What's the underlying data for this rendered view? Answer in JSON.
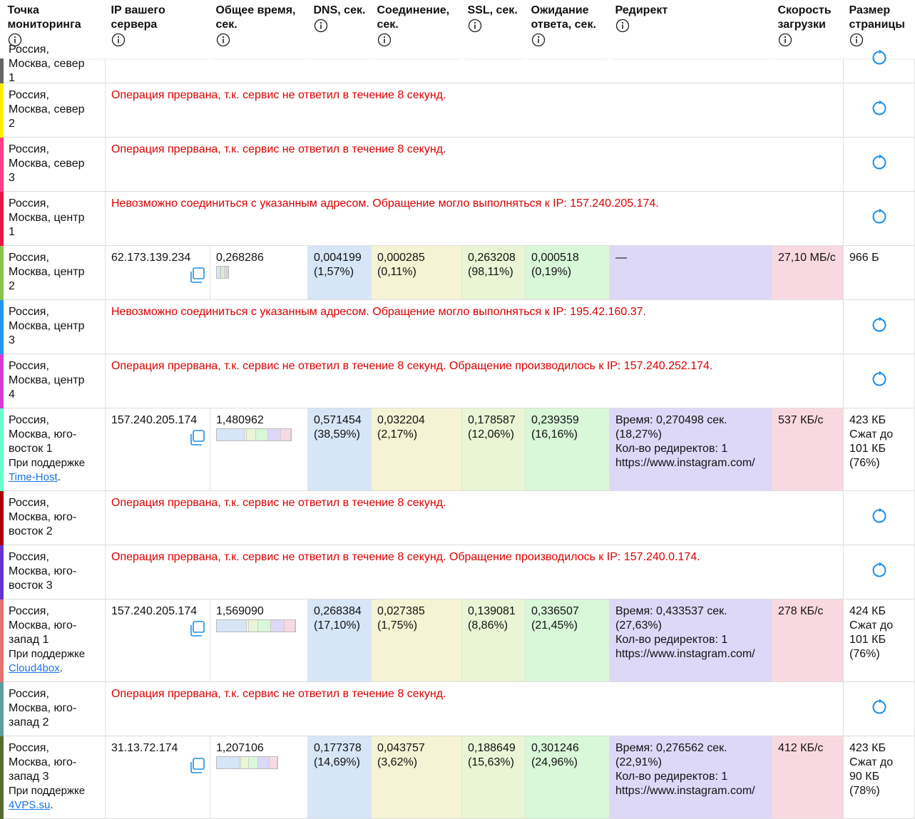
{
  "header": [
    "Точка мониторинга",
    "IP вашего сервера",
    "Общее время, сек.",
    "DNS, сек.",
    "Соединение, сек.",
    "SSL, сек.",
    "Ожидание ответа, сек.",
    "Редирект",
    "Скорость загрузки",
    "Размер страницы"
  ],
  "rows": [
    {
      "location": "Россия, Москва, север 1",
      "color": "#666666"
    },
    {
      "location": "Россия, Москва, север 2",
      "color": "#ffee00",
      "error": "Операция прервана, т.к. сервис не ответил в течение 8 секунд."
    },
    {
      "location": "Россия, Москва, север 3",
      "color": "#ff3d8b",
      "error": "Операция прервана, т.к. сервис не ответил в течение 8 секунд."
    },
    {
      "location": "Россия, Москва, центр 1",
      "color": "#e8174a",
      "error": "Невозможно соединиться с указанным адресом. Обращение могло выполняться к IP: 157.240.205.174."
    },
    {
      "location": "Россия, Москва, центр 2",
      "color": "#8bc34a",
      "ip": "62.173.139.234",
      "total": "0,268286",
      "dns": [
        "0,004199",
        "(1,57%)"
      ],
      "connect": [
        "0,000285",
        "(0,11%)"
      ],
      "ssl": [
        "0,263208",
        "(98,11%)"
      ],
      "wait": [
        "0,000518",
        "(0,19%)"
      ],
      "redirect": [
        "—"
      ],
      "speed": "27,10 МБ/с",
      "size": [
        "966 Б"
      ]
    },
    {
      "location": "Россия, Москва, центр 3",
      "color": "#2196f3",
      "error": "Невозможно соединиться с указанным адресом. Обращение могло выполняться к IP: 195.42.160.37."
    },
    {
      "location": "Россия, Москва, центр 4",
      "color": "#d63ad6",
      "error": "Операция прервана, т.к. сервис не ответил в течение 8 секунд. Обращение производилось к IP: 157.240.252.174."
    },
    {
      "location": "Россия, Москва, юго-восток 1",
      "color": "#66ffcc",
      "sponsor": [
        "При поддержке",
        "Time-Host",
        "."
      ],
      "ip": "157.240.205.174",
      "total": "1,480962",
      "dns": [
        "0,571454",
        "(38,59%)"
      ],
      "connect": [
        "0,032204",
        "(2,17%)"
      ],
      "ssl": [
        "0,178587",
        "(12,06%)"
      ],
      "wait": [
        "0,239359",
        "(16,16%)"
      ],
      "redirect": [
        "Время: 0,270498 сек. (18,27%)",
        "Кол-во редиректов: 1",
        "https://www.instagram.com/"
      ],
      "speed": "537 КБ/с",
      "size": [
        "423 КБ",
        "Сжат до 101 КБ",
        "(76%)"
      ]
    },
    {
      "location": "Россия, Москва, юго-восток 2",
      "color": "#aa0000",
      "error": "Операция прервана, т.к. сервис не ответил в течение 8 секунд."
    },
    {
      "location": "Россия, Москва, юго-восток 3",
      "color": "#6633cc",
      "error": "Операция прервана, т.к. сервис не ответил в течение 8 секунд. Обращение производилось к IP: 157.240.0.174."
    },
    {
      "location": "Россия, Москва, юго-запад 1",
      "color": "#e57373",
      "sponsor": [
        "При поддержке",
        "Cloud4box",
        "."
      ],
      "ip": "157.240.205.174",
      "total": "1,569090",
      "dns": [
        "0,268384",
        "(17,10%)"
      ],
      "connect": [
        "0,027385",
        "(1,75%)"
      ],
      "ssl": [
        "0,139081",
        "(8,86%)"
      ],
      "wait": [
        "0,336507",
        "(21,45%)"
      ],
      "redirect": [
        "Время: 0,433537 сек. (27,63%)",
        "Кол-во редиректов: 1",
        "https://www.instagram.com/"
      ],
      "speed": "278 КБ/с",
      "size": [
        "424 КБ",
        "Сжат до 101 КБ",
        "(76%)"
      ]
    },
    {
      "location": "Россия, Москва, юго-запад 2",
      "color": "#5f9ea0",
      "error": "Операция прервана, т.к. сервис не ответил в течение 8 секунд."
    },
    {
      "location": "Россия, Москва, юго-запад 3",
      "color": "#556b2f",
      "sponsor": [
        "При поддержке",
        "4VPS.su",
        "."
      ],
      "ip": "31.13.72.174",
      "total": "1,207106",
      "dns": [
        "0,177378",
        "(14,69%)"
      ],
      "connect": [
        "0,043757",
        "(3,62%)"
      ],
      "ssl": [
        "0,188649",
        "(15,63%)"
      ],
      "wait": [
        "0,301246",
        "(24,96%)"
      ],
      "redirect": [
        "Время: 0,276562 сек. (22,91%)",
        "Кол-во редиректов: 1",
        "https://www.instagram.com/"
      ],
      "speed": "412 КБ/с",
      "size": [
        "423 КБ",
        "Сжат до 90 КБ",
        "(78%)"
      ]
    }
  ]
}
